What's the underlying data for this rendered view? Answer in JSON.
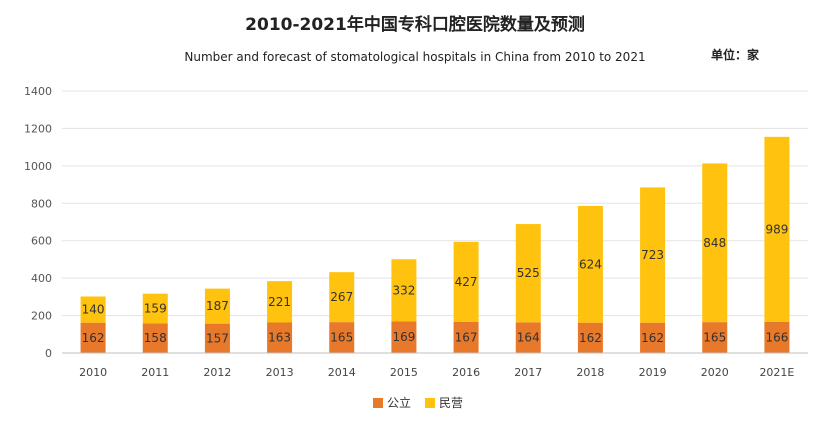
{
  "chart_data": {
    "type": "bar",
    "stacked": true,
    "title": "2010-2021年中国专科口腔医院数量及预测",
    "subtitle": "Number and forecast of stomatological hospitals in China from 2010 to 2021",
    "unit_label": "单位：家",
    "categories": [
      "2010",
      "2011",
      "2012",
      "2013",
      "2014",
      "2015",
      "2016",
      "2017",
      "2018",
      "2019",
      "2020",
      "2021E"
    ],
    "series": [
      {
        "name": "公立",
        "color": "#E8782A",
        "values": [
          162,
          158,
          157,
          163,
          165,
          169,
          167,
          164,
          162,
          162,
          165,
          166
        ]
      },
      {
        "name": "民营",
        "color": "#FFC20E",
        "values": [
          140,
          159,
          187,
          221,
          267,
          332,
          427,
          525,
          624,
          723,
          848,
          989
        ]
      }
    ],
    "ylim": [
      0,
      1400
    ],
    "yticks": [
      0,
      200,
      400,
      600,
      800,
      1000,
      1200,
      1400
    ],
    "grid": true,
    "legend_position": "bottom-center",
    "xlabel": "",
    "ylabel": ""
  }
}
